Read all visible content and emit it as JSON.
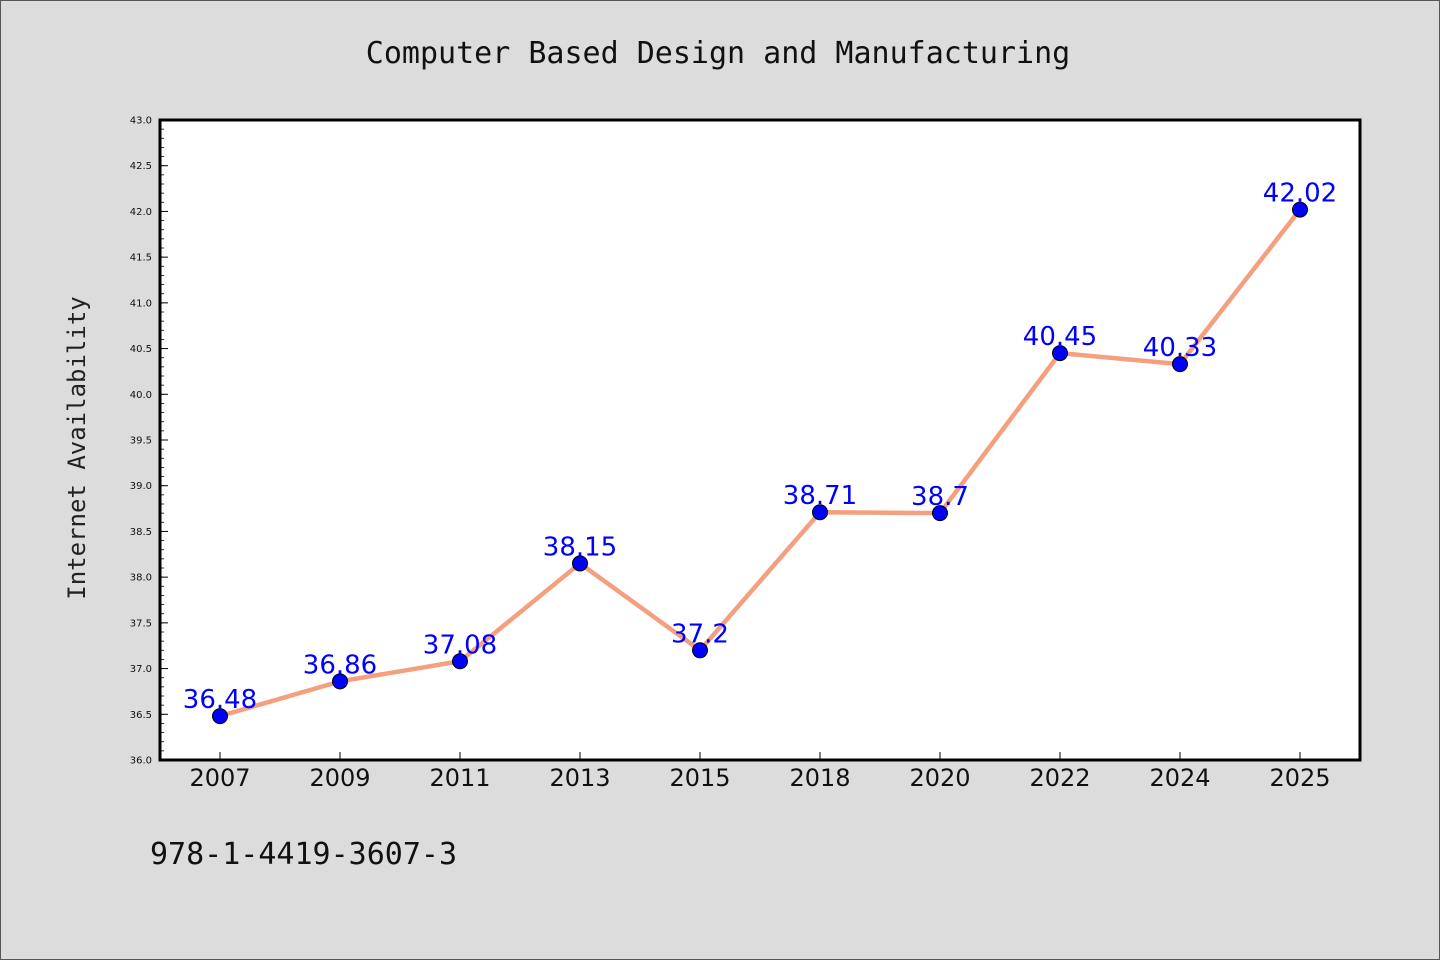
{
  "chart_data": {
    "type": "line",
    "title": "Computer Based Design and Manufacturing",
    "xlabel": "",
    "ylabel": "Internet Availability",
    "categories": [
      "2007",
      "2009",
      "2011",
      "2013",
      "2015",
      "2018",
      "2020",
      "2022",
      "2024",
      "2025"
    ],
    "series": [
      {
        "values": [
          36.48,
          36.86,
          37.08,
          38.15,
          37.2,
          38.71,
          38.7,
          40.45,
          40.33,
          42.02
        ]
      }
    ],
    "data_labels": [
      "36.48",
      "36.86",
      "37.08",
      "38.15",
      "37.2",
      "38.71",
      "38.7",
      "40.45",
      "40.33",
      "42.02"
    ],
    "ylim": [
      36.0,
      43.0
    ],
    "yticks": [
      "36.0",
      "36.5",
      "37.0",
      "37.5",
      "38.0",
      "38.5",
      "39.0",
      "39.5",
      "40.0",
      "40.5",
      "41.0",
      "41.5",
      "42.0",
      "42.5",
      "43.0"
    ],
    "grid": false,
    "legend": "none",
    "colors": {
      "line": "#f4a07f",
      "marker": "#0000ff",
      "data_label": "#0000ff",
      "plot_background": "#ffffff",
      "figure_background": "#dcdcdc"
    }
  },
  "footer": {
    "text": "978-1-4419-3607-3"
  }
}
